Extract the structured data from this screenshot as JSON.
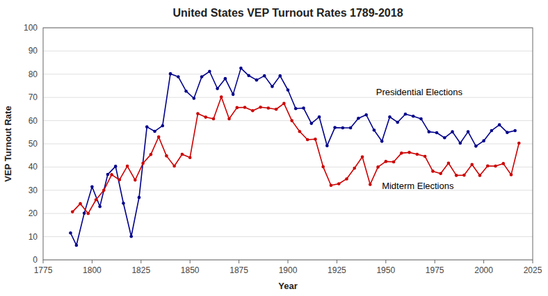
{
  "chart_data": {
    "type": "line",
    "title": "United States VEP Turnout Rates 1789-2018",
    "xlabel": "Year",
    "ylabel": "VEP Turnout Rate",
    "xlim": [
      1775,
      2025
    ],
    "ylim": [
      0,
      100
    ],
    "xticks": [
      1775,
      1800,
      1825,
      1850,
      1875,
      1900,
      1925,
      1950,
      1975,
      2000,
      2025
    ],
    "yticks": [
      0,
      10,
      20,
      30,
      40,
      50,
      60,
      70,
      80,
      90,
      100
    ],
    "grid": true,
    "marker": "circle",
    "series": [
      {
        "color": "#00008B",
        "x": [
          1789,
          1792,
          1796,
          1800,
          1804,
          1808,
          1812,
          1816,
          1820,
          1824,
          1828,
          1832,
          1836,
          1840,
          1844,
          1848,
          1852,
          1856,
          1860,
          1864,
          1868,
          1872,
          1876,
          1880,
          1884,
          1888,
          1892,
          1896,
          1900,
          1904,
          1908,
          1912,
          1916,
          1920,
          1924,
          1928,
          1932,
          1936,
          1940,
          1944,
          1948,
          1952,
          1956,
          1960,
          1964,
          1968,
          1972,
          1976,
          1980,
          1984,
          1988,
          1992,
          1996,
          2000,
          2004,
          2008,
          2012,
          2016
        ],
        "values": [
          11.6,
          6.3,
          20.1,
          31.5,
          23.0,
          36.8,
          40.3,
          24.4,
          10.1,
          26.9,
          57.3,
          55.4,
          57.8,
          80.2,
          78.9,
          72.7,
          69.6,
          78.9,
          81.2,
          73.8,
          78.1,
          71.3,
          82.6,
          79.4,
          77.5,
          79.3,
          74.7,
          79.3,
          73.2,
          65.2,
          65.4,
          58.8,
          61.6,
          49.2,
          57.0,
          56.9,
          56.9,
          61.0,
          62.5,
          55.9,
          51.1,
          61.6,
          59.3,
          62.8,
          61.9,
          60.8,
          55.2,
          54.8,
          52.6,
          55.2,
          50.3,
          55.2,
          49.0,
          51.3,
          55.7,
          58.2,
          54.9,
          55.7
        ]
      },
      {
        "color": "#CC0000",
        "x": [
          1790,
          1794,
          1798,
          1802,
          1806,
          1810,
          1814,
          1818,
          1822,
          1826,
          1830,
          1834,
          1838,
          1842,
          1846,
          1850,
          1854,
          1858,
          1862,
          1866,
          1870,
          1874,
          1878,
          1882,
          1886,
          1890,
          1894,
          1898,
          1902,
          1906,
          1910,
          1914,
          1918,
          1922,
          1926,
          1930,
          1934,
          1938,
          1942,
          1946,
          1950,
          1954,
          1958,
          1962,
          1966,
          1970,
          1974,
          1978,
          1982,
          1986,
          1990,
          1994,
          1998,
          2002,
          2006,
          2010,
          2014,
          2018
        ],
        "values": [
          20.7,
          24.2,
          20.0,
          25.9,
          30.0,
          36.7,
          34.5,
          40.4,
          34.4,
          41.6,
          45.4,
          53.0,
          44.8,
          40.4,
          45.5,
          44.1,
          63.0,
          61.5,
          60.8,
          70.2,
          60.8,
          65.6,
          65.7,
          64.3,
          65.8,
          65.4,
          64.9,
          67.4,
          60.0,
          55.3,
          51.8,
          52.0,
          40.1,
          32.1,
          32.8,
          34.9,
          39.5,
          44.4,
          32.5,
          40.0,
          42.4,
          42.2,
          46.0,
          46.3,
          45.5,
          44.6,
          38.2,
          37.2,
          41.7,
          36.4,
          36.5,
          41.1,
          36.4,
          40.5,
          40.4,
          41.5,
          36.7,
          50.3
        ]
      }
    ],
    "annotations": [
      {
        "text": "Presidential Elections",
        "x": 1945,
        "y": 71
      },
      {
        "text": "Midterm Elections",
        "x": 1948,
        "y": 30.5
      }
    ]
  }
}
